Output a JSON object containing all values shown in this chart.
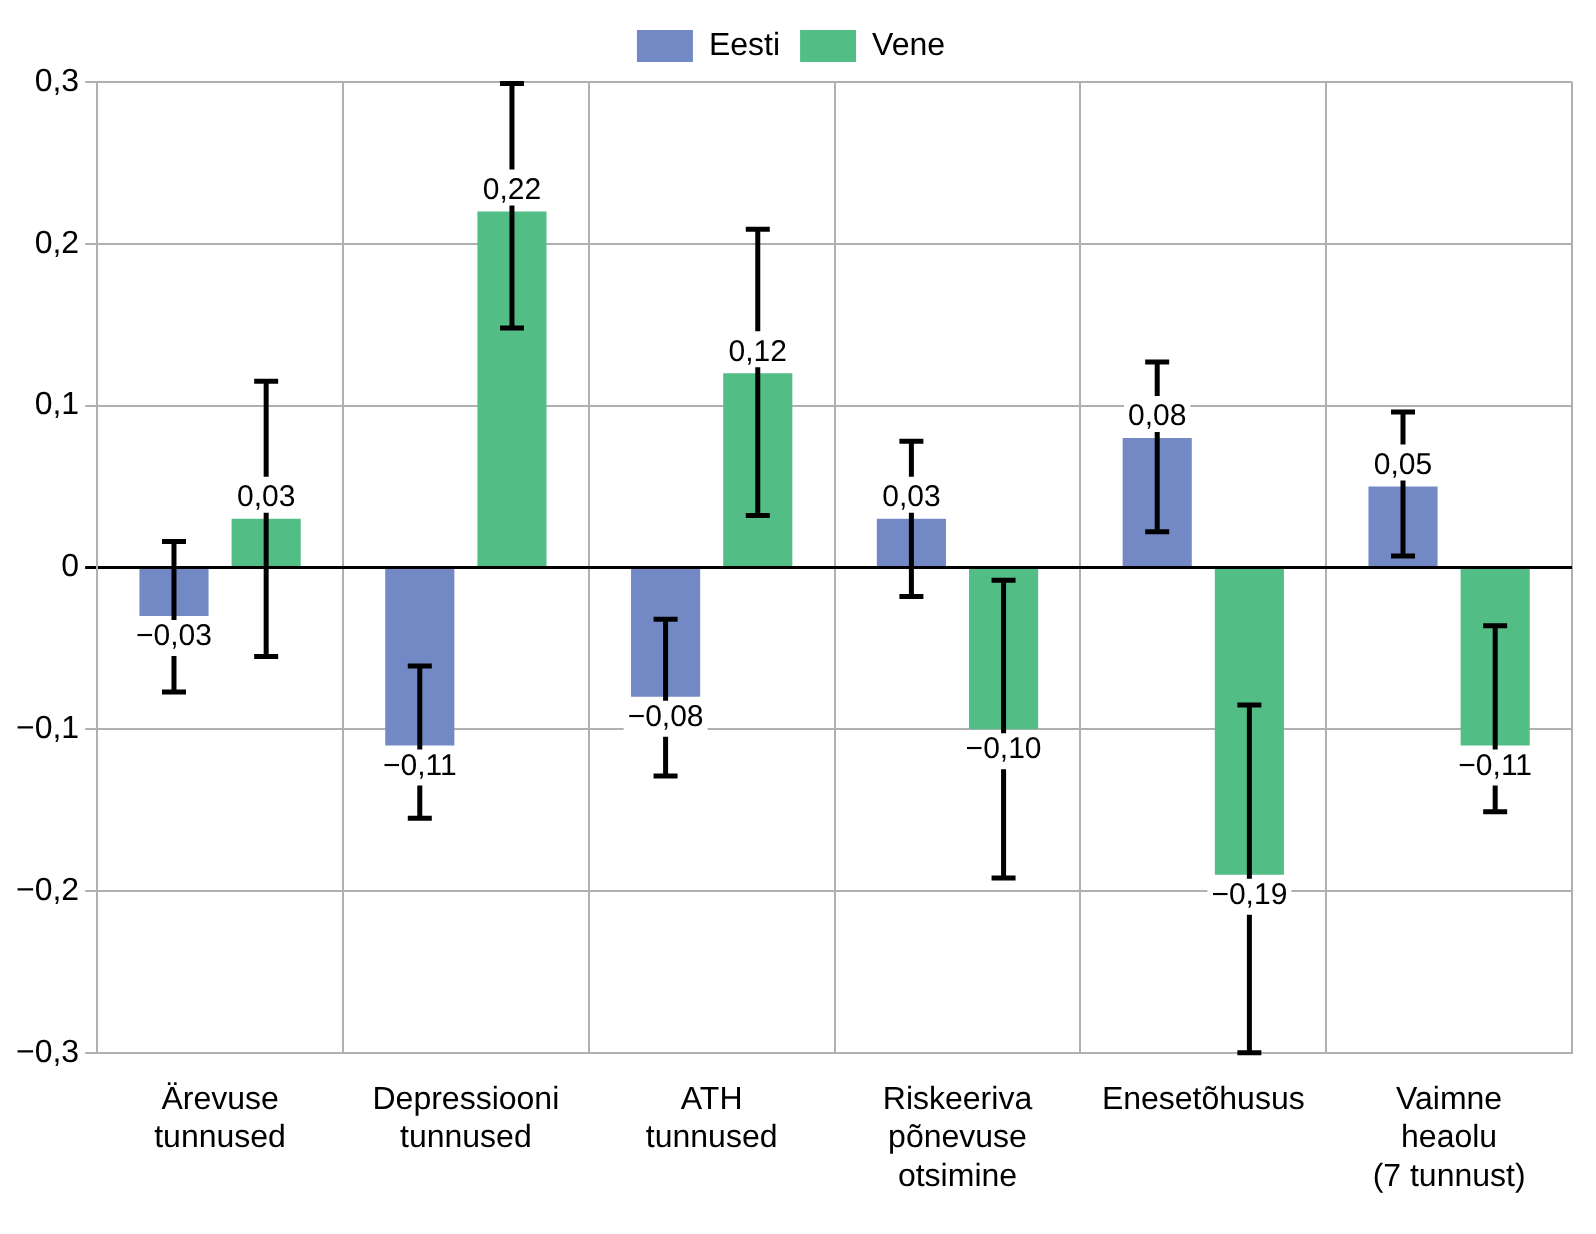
{
  "chart_data": {
    "type": "bar",
    "categories": [
      "Ärevuse\ntunnused",
      "Depressiooni\ntunnused",
      "ATH\ntunnused",
      "Riskeeriva\npõnevuse\notsimine",
      "Enesetõhusus",
      "Vaimne\nheaolu\n(7 tunnust)"
    ],
    "series": [
      {
        "name": "Eesti",
        "color": "#7389c6",
        "values": [
          -0.03,
          -0.11,
          -0.08,
          0.03,
          0.08,
          0.05
        ],
        "value_labels": [
          "−0,03",
          "−0,11",
          "−0,08",
          "0,03",
          "0,08",
          "0,05"
        ],
        "errors": [
          [
            -0.077,
            0.016
          ],
          [
            -0.155,
            -0.061
          ],
          [
            -0.129,
            -0.032
          ],
          [
            -0.018,
            0.078
          ],
          [
            0.022,
            0.127
          ],
          [
            0.007,
            0.096
          ]
        ]
      },
      {
        "name": "Vene",
        "color": "#52be86",
        "values": [
          0.03,
          0.22,
          0.12,
          -0.1,
          -0.19,
          -0.11
        ],
        "value_labels": [
          "0,03",
          "0,22",
          "0,12",
          "−0,10",
          "−0,19",
          "−0,11"
        ],
        "errors": [
          [
            -0.055,
            0.115
          ],
          [
            0.148,
            0.299
          ],
          [
            0.032,
            0.209
          ],
          [
            -0.192,
            -0.008
          ],
          [
            -0.3,
            -0.085
          ],
          [
            -0.151,
            -0.036
          ]
        ]
      }
    ],
    "ylim": [
      -0.3,
      0.3
    ],
    "yticks": [
      {
        "value": -0.3,
        "label": "−0,3"
      },
      {
        "value": -0.2,
        "label": "−0,2"
      },
      {
        "value": -0.1,
        "label": "−0,1"
      },
      0,
      {
        "value": 0.1,
        "label": "0,1"
      },
      {
        "value": 0.2,
        "label": "0,2"
      },
      {
        "value": 0.3,
        "label": "0,3"
      }
    ],
    "grid": true,
    "legend": "top"
  }
}
